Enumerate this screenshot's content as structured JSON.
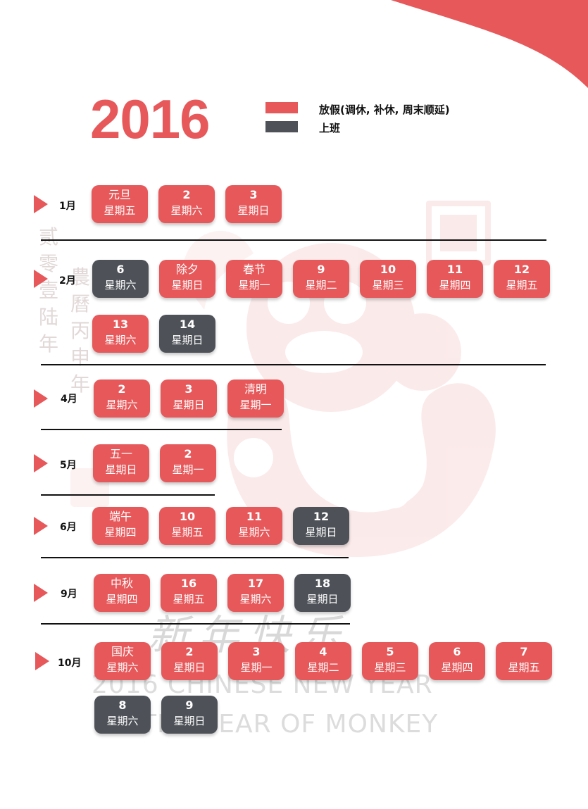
{
  "header": {
    "year": "2016",
    "legend": {
      "holiday_label": "放假(调休, 补休, 周末顺延)",
      "work_label": "上班"
    }
  },
  "colors": {
    "holiday": "#e6585a",
    "work": "#4e5258"
  },
  "months": [
    {
      "label": "1月",
      "days": [
        {
          "top": "元旦",
          "bottom": "星期五",
          "type": "holiday"
        },
        {
          "top": "2",
          "bottom": "星期六",
          "type": "holiday"
        },
        {
          "top": "3",
          "bottom": "星期日",
          "type": "holiday"
        }
      ]
    },
    {
      "label": "2月",
      "days": [
        {
          "top": "6",
          "bottom": "星期六",
          "type": "work"
        },
        {
          "top": "除夕",
          "bottom": "星期日",
          "type": "holiday"
        },
        {
          "top": "春节",
          "bottom": "星期一",
          "type": "holiday"
        },
        {
          "top": "9",
          "bottom": "星期二",
          "type": "holiday"
        },
        {
          "top": "10",
          "bottom": "星期三",
          "type": "holiday"
        },
        {
          "top": "11",
          "bottom": "星期四",
          "type": "holiday"
        },
        {
          "top": "12",
          "bottom": "星期五",
          "type": "holiday"
        },
        {
          "top": "13",
          "bottom": "星期六",
          "type": "holiday"
        },
        {
          "top": "14",
          "bottom": "星期日",
          "type": "work"
        }
      ]
    },
    {
      "label": "4月",
      "days": [
        {
          "top": "2",
          "bottom": "星期六",
          "type": "holiday"
        },
        {
          "top": "3",
          "bottom": "星期日",
          "type": "holiday"
        },
        {
          "top": "清明",
          "bottom": "星期一",
          "type": "holiday"
        }
      ]
    },
    {
      "label": "5月",
      "days": [
        {
          "top": "五一",
          "bottom": "星期日",
          "type": "holiday"
        },
        {
          "top": "2",
          "bottom": "星期一",
          "type": "holiday"
        }
      ]
    },
    {
      "label": "6月",
      "days": [
        {
          "top": "端午",
          "bottom": "星期四",
          "type": "holiday"
        },
        {
          "top": "10",
          "bottom": "星期五",
          "type": "holiday"
        },
        {
          "top": "11",
          "bottom": "星期六",
          "type": "holiday"
        },
        {
          "top": "12",
          "bottom": "星期日",
          "type": "work"
        }
      ]
    },
    {
      "label": "9月",
      "days": [
        {
          "top": "中秋",
          "bottom": "星期四",
          "type": "holiday"
        },
        {
          "top": "16",
          "bottom": "星期五",
          "type": "holiday"
        },
        {
          "top": "17",
          "bottom": "星期六",
          "type": "holiday"
        },
        {
          "top": "18",
          "bottom": "星期日",
          "type": "work"
        }
      ]
    },
    {
      "label": "10月",
      "days": [
        {
          "top": "国庆",
          "bottom": "星期六",
          "type": "holiday"
        },
        {
          "top": "2",
          "bottom": "星期日",
          "type": "holiday"
        },
        {
          "top": "3",
          "bottom": "星期一",
          "type": "holiday"
        },
        {
          "top": "4",
          "bottom": "星期二",
          "type": "holiday"
        },
        {
          "top": "5",
          "bottom": "星期三",
          "type": "holiday"
        },
        {
          "top": "6",
          "bottom": "星期四",
          "type": "holiday"
        },
        {
          "top": "7",
          "bottom": "星期五",
          "type": "holiday"
        },
        {
          "top": "8",
          "bottom": "星期六",
          "type": "work"
        },
        {
          "top": "9",
          "bottom": "星期日",
          "type": "work"
        }
      ]
    }
  ],
  "background": {
    "watermark_line1": "2016 CHINESE NEW YEAR",
    "watermark_line2": "THE YEAR OF MONKEY",
    "brush_text": "新年快乐",
    "vertical_text_1": "贰零壹陆年",
    "vertical_text_2": "農曆丙申年"
  }
}
